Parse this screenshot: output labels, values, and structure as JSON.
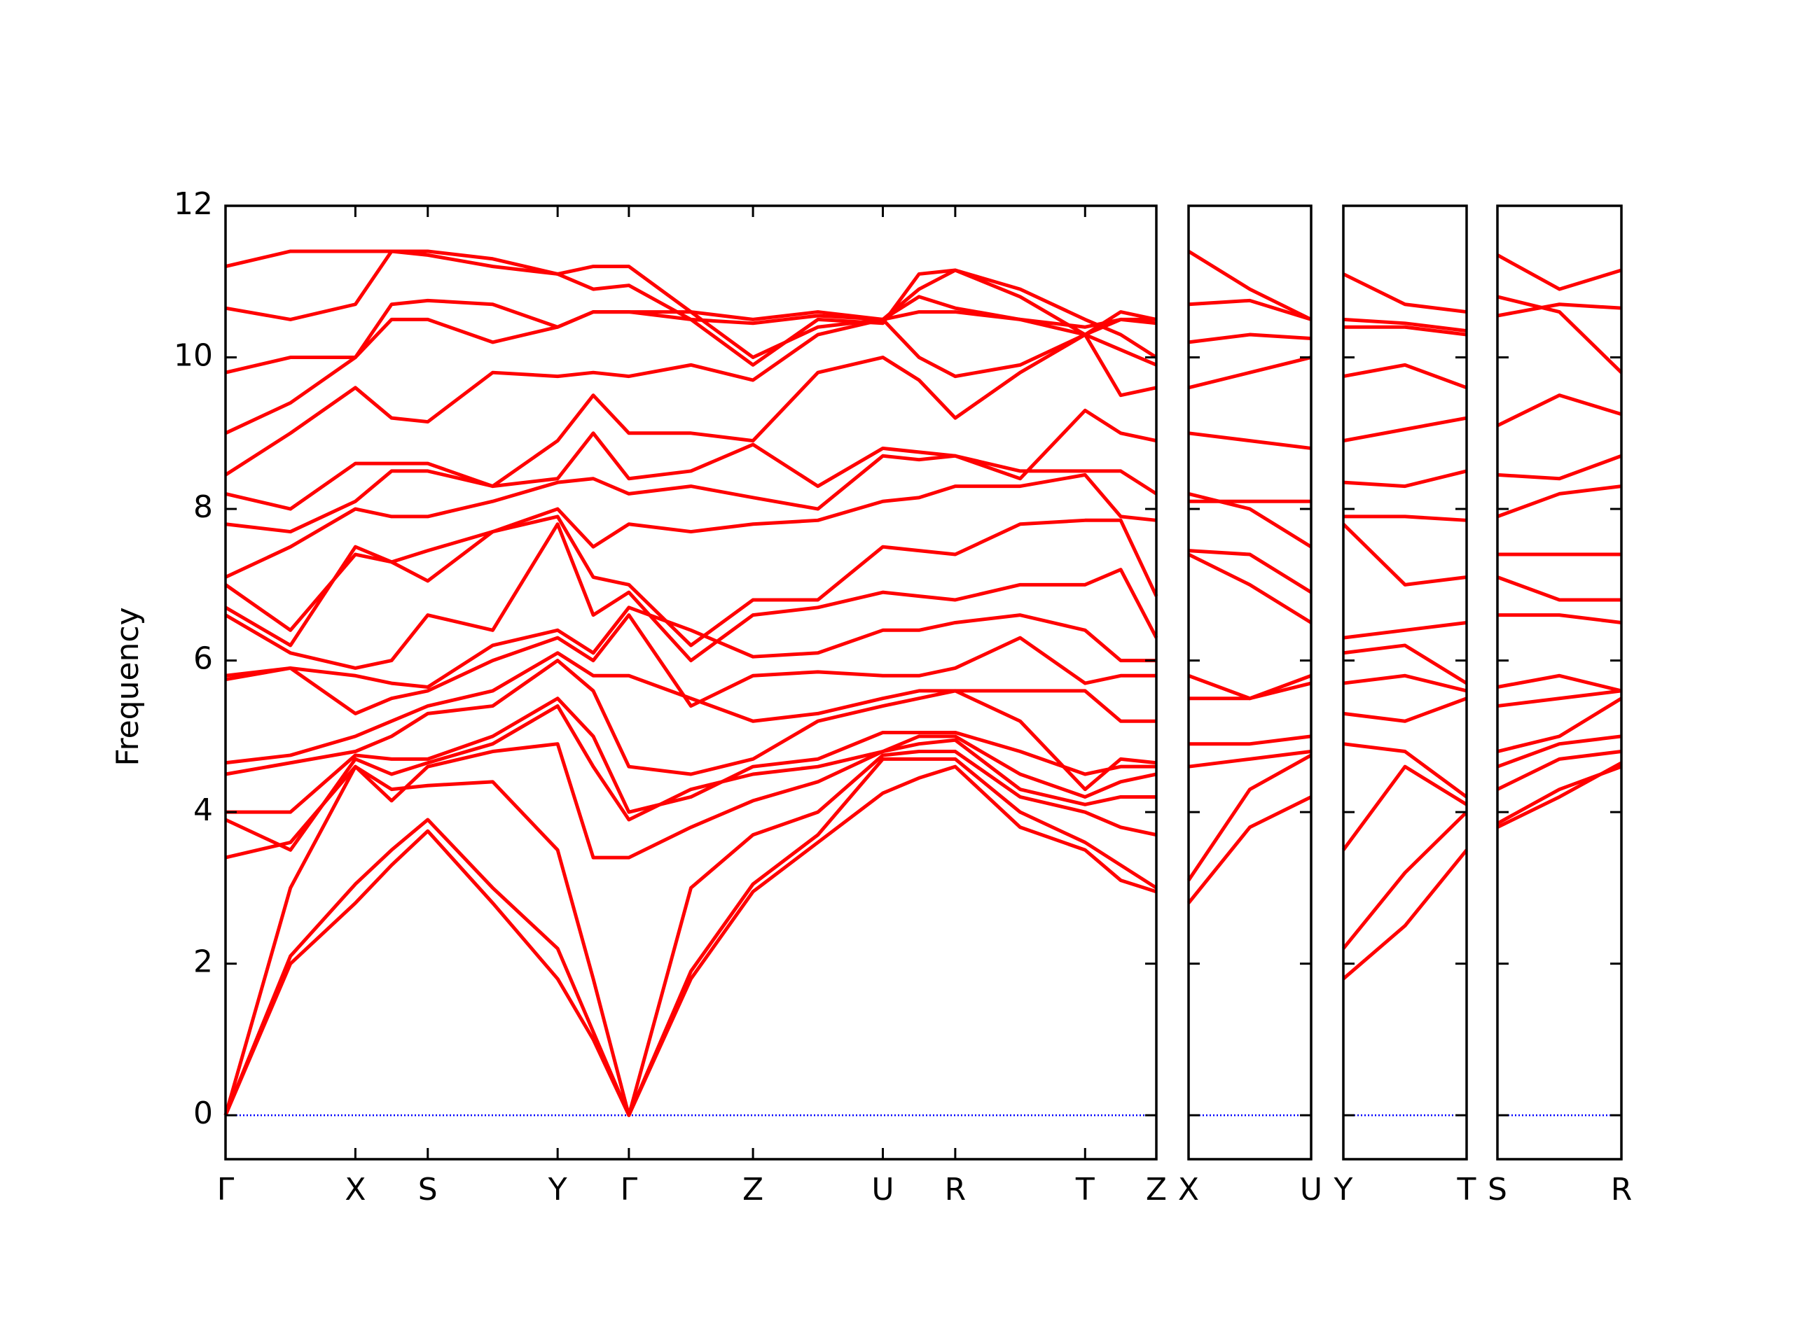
{
  "chart_data": [
    {
      "type": "line",
      "y_label": "Frequency",
      "color": "#ff0000",
      "zero_line_color": "#0000ff",
      "x": [
        0,
        0.565,
        1.13,
        1.445,
        1.76,
        2.325,
        2.89,
        3.2,
        3.51,
        4.05,
        4.59,
        5.155,
        5.72,
        6.035,
        6.35,
        6.915,
        7.48,
        7.79,
        8.1
      ],
      "xlim": [
        0,
        8.1
      ],
      "xticks": [
        {
          "value": 0,
          "label": "Γ"
        },
        {
          "value": 1.13,
          "label": "X"
        },
        {
          "value": 1.76,
          "label": "S"
        },
        {
          "value": 2.89,
          "label": "Y"
        },
        {
          "value": 3.51,
          "label": "Γ"
        },
        {
          "value": 4.59,
          "label": "Z"
        },
        {
          "value": 5.72,
          "label": "U"
        },
        {
          "value": 6.35,
          "label": "R"
        },
        {
          "value": 7.48,
          "label": "T"
        },
        {
          "value": 8.1,
          "label": "Z"
        }
      ],
      "ylim": [
        -0.58,
        12
      ],
      "yticks": [
        0,
        2,
        4,
        6,
        8,
        10,
        12
      ],
      "series": [
        {
          "values": [
            0,
            2.0,
            2.8,
            3.3,
            3.75,
            2.8,
            1.8,
            1.0,
            0,
            1.8,
            2.95,
            3.6,
            4.25,
            4.45,
            4.6,
            3.8,
            3.5,
            3.1,
            2.95
          ]
        },
        {
          "values": [
            0,
            2.1,
            3.05,
            3.5,
            3.9,
            3.0,
            2.2,
            1.1,
            0,
            1.9,
            3.05,
            3.7,
            4.7,
            4.7,
            4.7,
            4.0,
            3.6,
            3.3,
            3.0
          ]
        },
        {
          "values": [
            0,
            3.0,
            4.6,
            4.3,
            4.35,
            4.4,
            3.5,
            1.8,
            0,
            3.0,
            3.7,
            4.0,
            4.75,
            4.8,
            4.8,
            4.2,
            4.0,
            3.8,
            3.7
          ]
        },
        {
          "values": [
            3.4,
            3.6,
            4.6,
            4.15,
            4.6,
            4.8,
            4.9,
            3.4,
            3.4,
            3.8,
            4.15,
            4.4,
            4.8,
            4.9,
            4.95,
            4.3,
            4.1,
            4.2,
            4.2
          ]
        },
        {
          "values": [
            3.9,
            3.5,
            4.7,
            4.5,
            4.65,
            4.9,
            5.4,
            4.6,
            3.9,
            4.3,
            4.5,
            4.6,
            4.8,
            5.0,
            5.0,
            4.5,
            4.2,
            4.4,
            4.5
          ]
        },
        {
          "values": [
            4.0,
            4.0,
            4.75,
            4.7,
            4.7,
            5.0,
            5.5,
            5.0,
            4.0,
            4.2,
            4.6,
            4.7,
            5.05,
            5.05,
            5.05,
            4.8,
            4.5,
            4.6,
            4.6
          ]
        },
        {
          "values": [
            4.5,
            4.65,
            4.8,
            5.0,
            5.3,
            5.4,
            6.0,
            5.6,
            4.6,
            4.5,
            4.7,
            5.2,
            5.4,
            5.5,
            5.6,
            5.2,
            4.3,
            4.7,
            4.65
          ]
        },
        {
          "values": [
            4.65,
            4.75,
            5.0,
            5.2,
            5.4,
            5.6,
            6.1,
            5.8,
            5.8,
            5.5,
            5.2,
            5.3,
            5.5,
            5.6,
            5.6,
            5.6,
            5.6,
            5.2,
            5.2
          ]
        },
        {
          "values": [
            5.75,
            5.9,
            5.3,
            5.5,
            5.6,
            6.0,
            6.3,
            6.0,
            6.6,
            5.4,
            5.8,
            5.85,
            5.8,
            5.8,
            5.9,
            6.3,
            5.7,
            5.8,
            5.8
          ]
        },
        {
          "values": [
            5.8,
            5.9,
            5.8,
            5.7,
            5.65,
            6.2,
            6.4,
            6.1,
            6.7,
            6.4,
            6.05,
            6.1,
            6.4,
            6.4,
            6.5,
            6.6,
            6.4,
            6.0,
            6.0
          ]
        },
        {
          "values": [
            6.6,
            6.1,
            5.9,
            6.0,
            6.6,
            6.4,
            7.8,
            6.6,
            6.9,
            6.0,
            6.6,
            6.7,
            6.9,
            6.85,
            6.8,
            7.0,
            7.0,
            7.2,
            6.3
          ]
        },
        {
          "values": [
            6.7,
            6.2,
            7.5,
            7.3,
            7.05,
            7.7,
            7.9,
            7.1,
            7.0,
            6.2,
            6.8,
            6.8,
            7.5,
            7.45,
            7.4,
            7.8,
            7.85,
            7.85,
            6.85
          ]
        },
        {
          "values": [
            7.0,
            6.4,
            7.4,
            7.3,
            7.45,
            7.7,
            8.0,
            7.5,
            7.8,
            7.7,
            7.8,
            7.85,
            8.1,
            8.15,
            8.3,
            8.3,
            8.45,
            7.9,
            7.85
          ]
        },
        {
          "values": [
            7.1,
            7.5,
            8.0,
            7.9,
            7.9,
            8.1,
            8.35,
            8.4,
            8.2,
            8.3,
            8.15,
            8.0,
            8.7,
            8.65,
            8.7,
            8.5,
            8.5,
            8.5,
            8.2
          ]
        },
        {
          "values": [
            7.8,
            7.7,
            8.1,
            8.5,
            8.5,
            8.3,
            8.4,
            9.0,
            8.4,
            8.5,
            8.85,
            8.3,
            8.8,
            8.75,
            8.7,
            8.4,
            9.3,
            9.0,
            8.9
          ]
        },
        {
          "values": [
            8.2,
            8.0,
            8.6,
            8.6,
            8.6,
            8.3,
            8.9,
            9.5,
            9.0,
            9.0,
            8.9,
            9.8,
            10.0,
            9.7,
            9.2,
            9.8,
            10.3,
            9.5,
            9.6
          ]
        },
        {
          "values": [
            8.45,
            9.0,
            9.6,
            9.2,
            9.15,
            9.8,
            9.75,
            9.8,
            9.75,
            9.9,
            9.7,
            10.3,
            10.5,
            10.0,
            9.75,
            9.9,
            10.3,
            10.1,
            9.9
          ]
        },
        {
          "values": [
            9.0,
            9.4,
            10.0,
            10.5,
            10.5,
            10.2,
            10.4,
            10.6,
            10.6,
            10.5,
            10.45,
            10.55,
            10.5,
            10.6,
            10.6,
            10.5,
            10.3,
            10.5,
            10.45
          ]
        },
        {
          "values": [
            9.8,
            10.0,
            10.0,
            10.7,
            10.75,
            10.7,
            10.4,
            10.6,
            10.6,
            10.6,
            10.5,
            10.6,
            10.5,
            10.9,
            11.15,
            10.8,
            10.3,
            10.6,
            10.5
          ]
        },
        {
          "values": [
            10.65,
            10.5,
            10.7,
            11.4,
            11.4,
            11.3,
            11.1,
            11.2,
            11.2,
            10.6,
            10.0,
            10.4,
            10.5,
            10.8,
            10.65,
            10.5,
            10.4,
            10.5,
            10.5
          ]
        },
        {
          "values": [
            11.2,
            11.4,
            11.4,
            11.4,
            11.35,
            11.2,
            11.1,
            10.9,
            10.95,
            10.5,
            9.9,
            10.5,
            10.45,
            11.1,
            11.15,
            10.9,
            10.5,
            10.3,
            10.0
          ]
        }
      ]
    },
    {
      "type": "line",
      "color": "#ff0000",
      "zero_line_color": "#0000ff",
      "x": [
        0,
        0.535,
        1.07
      ],
      "xlim": [
        0,
        1.07
      ],
      "xticks": [
        {
          "value": 0,
          "label": "X"
        },
        {
          "value": 1.07,
          "label": "U"
        }
      ],
      "ylim": [
        -0.58,
        12
      ],
      "series": [
        {
          "values": [
            2.8,
            3.8,
            4.2
          ]
        },
        {
          "values": [
            3.1,
            4.3,
            4.75
          ]
        },
        {
          "values": [
            4.6,
            4.7,
            4.8
          ]
        },
        {
          "values": [
            4.9,
            4.9,
            5.0
          ]
        },
        {
          "values": [
            5.5,
            5.5,
            5.7
          ]
        },
        {
          "values": [
            5.8,
            5.5,
            5.8
          ]
        },
        {
          "values": [
            7.4,
            7.0,
            6.5
          ]
        },
        {
          "values": [
            7.45,
            7.4,
            6.9
          ]
        },
        {
          "values": [
            8.2,
            8.0,
            7.5
          ]
        },
        {
          "values": [
            8.1,
            8.1,
            8.1
          ]
        },
        {
          "values": [
            9.0,
            8.9,
            8.8
          ]
        },
        {
          "values": [
            9.6,
            9.8,
            10.0
          ]
        },
        {
          "values": [
            10.2,
            10.3,
            10.25
          ]
        },
        {
          "values": [
            10.7,
            10.75,
            10.5
          ]
        },
        {
          "values": [
            11.4,
            10.9,
            10.5
          ]
        }
      ]
    },
    {
      "type": "line",
      "color": "#ff0000",
      "zero_line_color": "#0000ff",
      "x": [
        0,
        0.535,
        1.07
      ],
      "xlim": [
        0,
        1.07
      ],
      "xticks": [
        {
          "value": 0,
          "label": "Y"
        },
        {
          "value": 1.07,
          "label": "T"
        }
      ],
      "ylim": [
        -0.58,
        12
      ],
      "series": [
        {
          "values": [
            1.8,
            2.5,
            3.5
          ]
        },
        {
          "values": [
            2.2,
            3.2,
            4.0
          ]
        },
        {
          "values": [
            3.5,
            4.6,
            4.1
          ]
        },
        {
          "values": [
            4.9,
            4.8,
            4.2
          ]
        },
        {
          "values": [
            5.3,
            5.2,
            5.5
          ]
        },
        {
          "values": [
            5.7,
            5.8,
            5.6
          ]
        },
        {
          "values": [
            6.1,
            6.2,
            5.7
          ]
        },
        {
          "values": [
            6.3,
            6.4,
            6.5
          ]
        },
        {
          "values": [
            7.8,
            7.0,
            7.1
          ]
        },
        {
          "values": [
            7.9,
            7.9,
            7.85
          ]
        },
        {
          "values": [
            8.35,
            8.3,
            8.5
          ]
        },
        {
          "values": [
            8.9,
            9.05,
            9.2
          ]
        },
        {
          "values": [
            9.75,
            9.9,
            9.6
          ]
        },
        {
          "values": [
            10.4,
            10.4,
            10.3
          ]
        },
        {
          "values": [
            10.5,
            10.45,
            10.35
          ]
        },
        {
          "values": [
            11.1,
            10.7,
            10.6
          ]
        }
      ]
    },
    {
      "type": "line",
      "color": "#ff0000",
      "zero_line_color": "#0000ff",
      "x": [
        0,
        0.535,
        1.07
      ],
      "xlim": [
        0,
        1.07
      ],
      "xticks": [
        {
          "value": 0,
          "label": "S"
        },
        {
          "value": 1.07,
          "label": "R"
        }
      ],
      "ylim": [
        -0.58,
        12
      ],
      "series": [
        {
          "values": [
            3.85,
            4.3,
            4.6
          ]
        },
        {
          "values": [
            3.8,
            4.2,
            4.65
          ]
        },
        {
          "values": [
            4.3,
            4.7,
            4.8
          ]
        },
        {
          "values": [
            4.6,
            4.9,
            5.0
          ]
        },
        {
          "values": [
            4.8,
            5.0,
            5.5
          ]
        },
        {
          "values": [
            5.4,
            5.5,
            5.6
          ]
        },
        {
          "values": [
            5.65,
            5.8,
            5.6
          ]
        },
        {
          "values": [
            6.6,
            6.6,
            6.5
          ]
        },
        {
          "values": [
            7.4,
            7.4,
            7.4
          ]
        },
        {
          "values": [
            7.1,
            6.8,
            6.8
          ]
        },
        {
          "values": [
            7.9,
            8.2,
            8.3
          ]
        },
        {
          "values": [
            8.45,
            8.4,
            8.7
          ]
        },
        {
          "values": [
            9.1,
            9.5,
            9.25
          ]
        },
        {
          "values": [
            10.55,
            10.7,
            10.65
          ]
        },
        {
          "values": [
            10.8,
            10.6,
            9.8
          ]
        },
        {
          "values": [
            11.35,
            10.9,
            11.15
          ]
        }
      ]
    }
  ]
}
